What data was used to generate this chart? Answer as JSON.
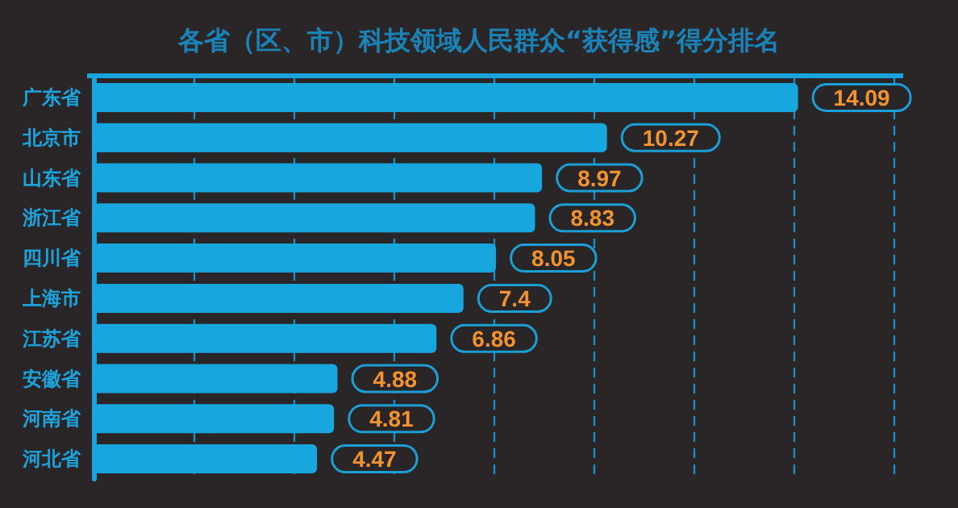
{
  "chart_data": {
    "type": "bar",
    "orientation": "horizontal",
    "title": "各省（区、市）科技领域人民群众“获得感”得分排名",
    "categories": [
      "广东省",
      "北京市",
      "山东省",
      "浙江省",
      "四川省",
      "上海市",
      "江苏省",
      "安徽省",
      "河南省",
      "河北省"
    ],
    "values": [
      14.09,
      10.27,
      8.97,
      8.83,
      8.05,
      7.4,
      6.86,
      4.88,
      4.81,
      4.47
    ],
    "color": "#18a6de",
    "data_labels": true,
    "grid": "x",
    "tick_labels": "y",
    "xlim": [
      0,
      16
    ],
    "xticks": [
      {
        "value": 0,
        "label": null
      },
      {
        "value": 2,
        "label": null
      },
      {
        "value": 4,
        "label": null
      },
      {
        "value": 6,
        "label": null
      },
      {
        "value": 8,
        "label": null
      },
      {
        "value": 10,
        "label": null
      },
      {
        "value": 12,
        "label": null
      },
      {
        "value": 14,
        "label": null
      },
      {
        "value": 16,
        "label": null
      }
    ]
  }
}
